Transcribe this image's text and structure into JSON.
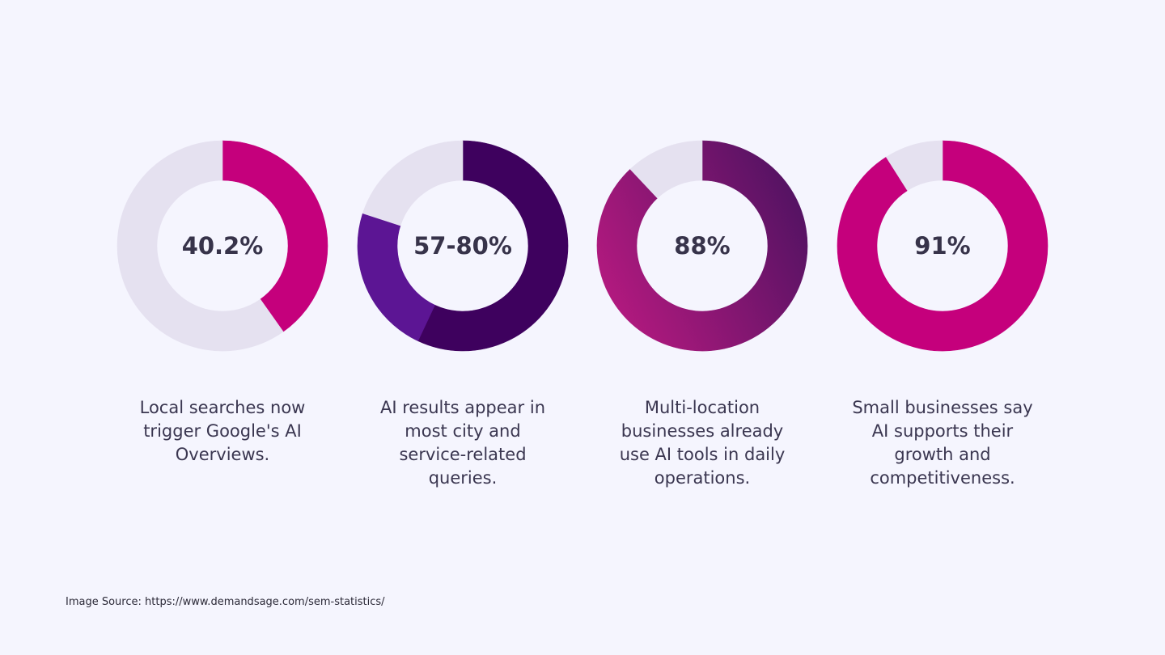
{
  "chart_data": [
    {
      "type": "pie",
      "donut": true,
      "center_label": "40.2%",
      "caption": "Local searches now\ntrigger Google's AI\nOverviews.",
      "slices": [
        {
          "value": 40.2,
          "color": "#c5007c"
        },
        {
          "value": 59.8,
          "color": "#e5e1f0"
        }
      ]
    },
    {
      "type": "pie",
      "donut": true,
      "center_label": "57-80%",
      "caption": "AI results appear in\nmost city and\nservice-related\nqueries.",
      "slices": [
        {
          "value": 57,
          "color": "#3e015e"
        },
        {
          "value": 23,
          "color": "#5c1594"
        },
        {
          "value": 20,
          "color": "#e5e1f0"
        }
      ]
    },
    {
      "type": "pie",
      "donut": true,
      "center_label": "88%",
      "caption": "Multi-location\nbusinesses already\nuse AI tools in daily\noperations.",
      "slices": [
        {
          "value": 88,
          "color": "#70176a",
          "gradient": [
            "#4a1260",
            "#b0197e"
          ]
        },
        {
          "value": 12,
          "color": "#e5e1f0"
        }
      ]
    },
    {
      "type": "pie",
      "donut": true,
      "center_label": "91%",
      "caption": "Small businesses say\nAI supports their\ngrowth and\ncompetitiveness.",
      "slices": [
        {
          "value": 91,
          "color": "#c5007c"
        },
        {
          "value": 9,
          "color": "#e5e1f0"
        }
      ]
    }
  ],
  "source": "Image Source: https://www.demandsage.com/sem-statistics/"
}
